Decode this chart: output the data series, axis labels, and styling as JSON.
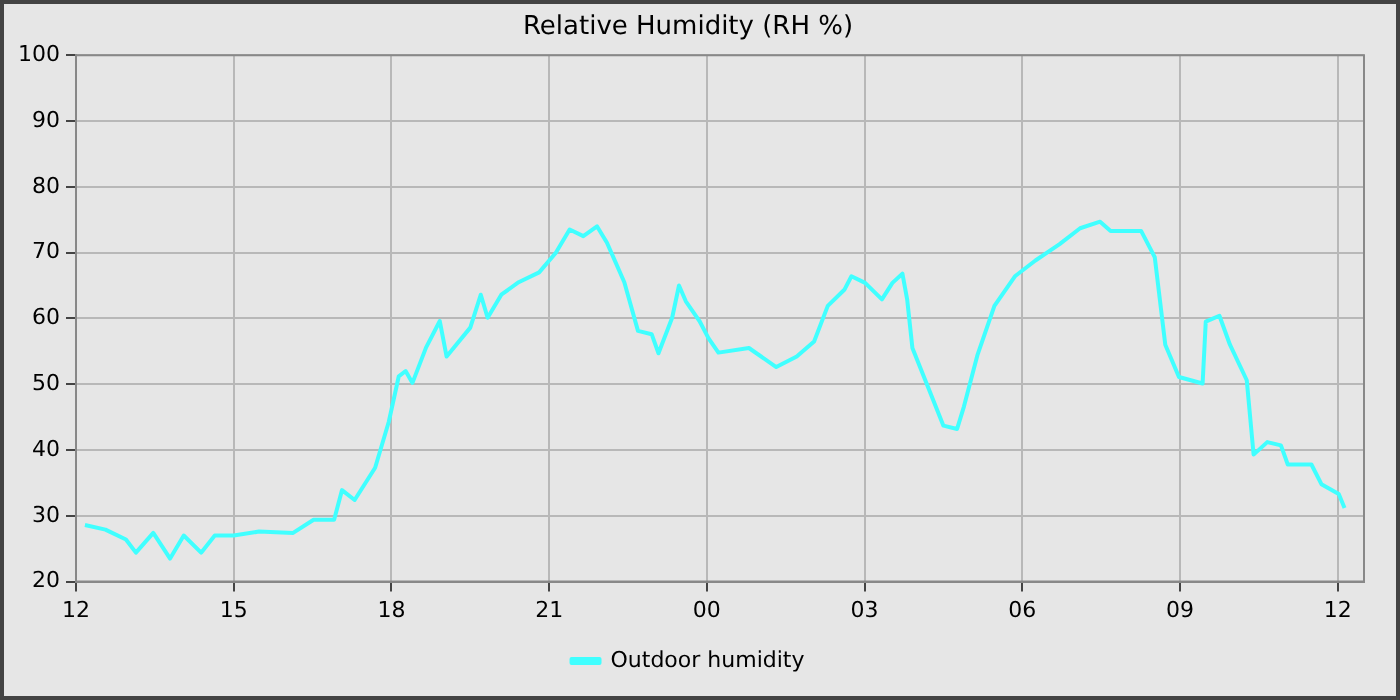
{
  "chart_data": {
    "type": "line",
    "title": "Relative Humidity (RH %)",
    "legend": "bottom",
    "grid": true,
    "marker": "none",
    "line_style": "solid",
    "xlim": [
      12,
      36.5
    ],
    "xticks": [
      {
        "value": 12,
        "label": "12"
      },
      {
        "value": 15,
        "label": "15"
      },
      {
        "value": 18,
        "label": "18"
      },
      {
        "value": 21,
        "label": "21"
      },
      {
        "value": 24,
        "label": "00"
      },
      {
        "value": 27,
        "label": "03"
      },
      {
        "value": 30,
        "label": "06"
      },
      {
        "value": 33,
        "label": "09"
      },
      {
        "value": 36,
        "label": "12"
      }
    ],
    "ylim": [
      20,
      100
    ],
    "yticks": [
      20,
      30,
      40,
      50,
      60,
      70,
      80,
      90,
      100
    ],
    "series": [
      {
        "name": "Outdoor humidity",
        "color": "#40ffff",
        "x": [
          12.17,
          12.56,
          12.95,
          13.14,
          13.47,
          13.79,
          14.05,
          14.38,
          14.64,
          15,
          15.48,
          16.13,
          16.52,
          16.91,
          17.06,
          17.3,
          17.69,
          17.95,
          18.14,
          18.27,
          18.4,
          18.66,
          18.92,
          19.05,
          19.5,
          19.7,
          19.83,
          20.09,
          20.42,
          20.81,
          21.13,
          21.39,
          21.65,
          21.91,
          22.1,
          22.43,
          22.69,
          22.95,
          23.08,
          23.34,
          23.47,
          23.6,
          23.86,
          24.03,
          24.22,
          24.8,
          25.32,
          25.71,
          26.04,
          26.3,
          26.62,
          26.75,
          27.01,
          27.33,
          27.53,
          27.72,
          27.81,
          27.91,
          28.18,
          28.5,
          28.76,
          28.89,
          29.15,
          29.47,
          29.86,
          30.25,
          30.71,
          31.1,
          31.48,
          31.68,
          32.26,
          32.52,
          32.72,
          32.98,
          33.43,
          33.49,
          33.75,
          33.95,
          34.27,
          34.4,
          34.66,
          34.92,
          35.05,
          35.5,
          35.69,
          36.02,
          36.13
        ],
        "values": [
          28.6,
          27.9,
          26.4,
          24.4,
          27.4,
          23.5,
          27,
          24.4,
          27,
          27,
          27.6,
          27.4,
          29.4,
          29.4,
          33.9,
          32.4,
          37.3,
          44.3,
          51.2,
          52,
          50.2,
          55.6,
          59.6,
          54.2,
          58.6,
          63.6,
          60.1,
          63.6,
          65.5,
          67,
          70,
          73.5,
          72.5,
          74,
          71.5,
          65.5,
          58.1,
          57.6,
          54.7,
          60.1,
          65,
          62.6,
          59.6,
          57,
          54.8,
          55.5,
          52.6,
          54.2,
          56.5,
          61.9,
          64.4,
          66.4,
          65.4,
          62.9,
          65.4,
          66.8,
          62.9,
          55.5,
          50.1,
          43.7,
          43.2,
          46.6,
          54.5,
          61.9,
          66.4,
          68.8,
          71.3,
          73.7,
          74.7,
          73.3,
          73.3,
          69.3,
          56,
          51.1,
          50.1,
          59.5,
          60.4,
          56,
          50.6,
          39.3,
          41.2,
          40.7,
          37.8,
          37.8,
          34.8,
          33.3,
          31.2
        ]
      }
    ]
  }
}
